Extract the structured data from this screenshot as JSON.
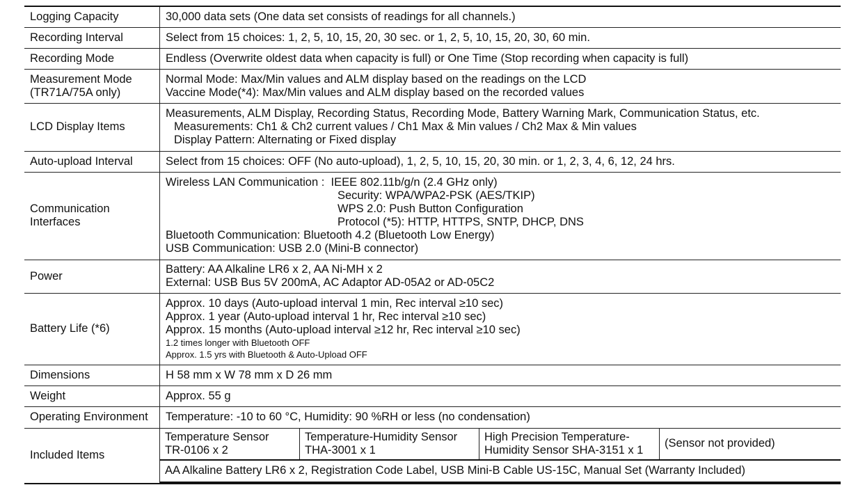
{
  "rows": [
    {
      "label": "Logging Capacity",
      "lines": [
        "30,000 data sets (One data set consists of readings for all channels.)"
      ]
    },
    {
      "label": "Recording Interval",
      "lines": [
        "Select from 15 choices: 1, 2, 5, 10, 15, 20, 30 sec. or 1, 2, 5, 10, 15, 20, 30, 60 min."
      ]
    },
    {
      "label": "Recording Mode",
      "lines": [
        "Endless (Overwrite oldest data when capacity is full) or One Time (Stop recording when capacity is full)"
      ]
    },
    {
      "label": "Measurement Mode",
      "label2": "(TR71A/75A only)",
      "lines": [
        "Normal Mode: Max/Min values and ALM display based on the readings on the LCD",
        "Vaccine Mode(*4): Max/Min values and ALM display based on the recorded values"
      ]
    },
    {
      "label": "LCD Display Items",
      "lines": [
        "Measurements, ALM Display, Recording Status, Recording Mode, Battery Warning Mark, Communication Status, etc.",
        "Measurements: Ch1 & Ch2 current values / Ch1 Max & Min values / Ch2 Max & Min values",
        "Display Pattern: Alternating or Fixed display"
      ]
    },
    {
      "label": "Auto-upload Interval",
      "lines": [
        "Select from 15 choices: OFF (No auto-upload), 1, 2, 5, 10, 15, 20, 30 min. or 1, 2, 3, 4, 6, 12, 24 hrs."
      ]
    },
    {
      "label": "Communication",
      "label2": "Interfaces",
      "lines": [
        "Wireless LAN Communication :  IEEE 802.11b/g/n (2.4 GHz only)",
        "Security: WPA/WPA2-PSK (AES/TKIP)",
        "WPS 2.0: Push Button Configuration",
        "Protocol (*5): HTTP, HTTPS, SNTP, DHCP, DNS",
        "Bluetooth Communication: Bluetooth 4.2 (Bluetooth Low Energy)",
        "USB Communication: USB 2.0 (Mini-B connector)"
      ]
    },
    {
      "label": "Power",
      "lines": [
        "Battery: AA Alkaline LR6 x 2, AA Ni-MH x 2",
        "External: USB Bus 5V 200mA, AC Adaptor AD-05A2 or AD-05C2"
      ]
    },
    {
      "label": "Battery Life (*6)",
      "lines": [
        "Approx. 10 days (Auto-upload interval 1 min, Rec interval ≥10 sec)",
        "Approx. 1 year (Auto-upload interval 1 hr, Rec interval ≥10 sec)",
        "Approx. 15 months (Auto-upload interval ≥12 hr, Rec interval ≥10 sec)",
        "1.2 times longer with Bluetooth OFF",
        "Approx. 1.5 yrs with Bluetooth & Auto-Upload OFF"
      ]
    },
    {
      "label": "Dimensions",
      "lines": [
        "H 58 mm x W 78 mm x D 26 mm"
      ]
    },
    {
      "label": "Weight",
      "lines": [
        "Approx. 55 g"
      ]
    },
    {
      "label": "Operating Environment",
      "lines": [
        "Temperature: -10 to 60 °C, Humidity: 90 %RH or less (no condensation)"
      ]
    },
    {
      "label": "Included Items",
      "sensors": [
        [
          "Temperature Sensor",
          "TR-0106 x 2"
        ],
        [
          "Temperature-Humidity Sensor",
          "THA-3001 x 1"
        ],
        [
          "High Precision Temperature-",
          "Humidity Sensor SHA-3151 x 1"
        ],
        [
          "(Sensor not provided)"
        ]
      ],
      "accessories": "AA Alkaline Battery LR6 x 2, Registration Code Label, USB Mini-B Cable US-15C, Manual Set (Warranty Included)"
    }
  ]
}
